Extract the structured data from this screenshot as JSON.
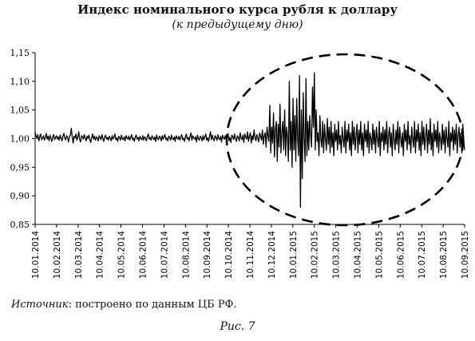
{
  "chart_data": {
    "type": "line",
    "title": "Индекс номинального курса рубля к доллару",
    "subtitle": "(к предыдущему дню)",
    "xlabel": "",
    "ylabel": "",
    "ylim": [
      0.85,
      1.15
    ],
    "yticks": [
      "0,85",
      "0,90",
      "0,95",
      "1,00",
      "1,05",
      "1,10",
      "1,15"
    ],
    "x_tick_labels": [
      "10.01.2014",
      "10.02.2014",
      "10.03.2014",
      "10.04.2014",
      "10.05.2014",
      "10.06.2014",
      "10.07.2014",
      "10.08.2014",
      "10.09.2014",
      "10.10.2014",
      "10.11.2014",
      "10.12.2014",
      "10.01.2015",
      "10.02.2015",
      "10.03.2015",
      "10.04.2015",
      "10.05.2015",
      "10.06.2015",
      "10.07.2015",
      "10.08.2015",
      "10.09.2015"
    ],
    "grid": false,
    "legend": "none",
    "annotation": "dashed ellipse highlighting high volatility period (Nov 2014 – Sep 2015)",
    "series": [
      {
        "values": [
          1.012,
          1.004,
          1.0,
          1.007,
          0.996,
          1.003,
          1.008,
          0.998,
          1.001,
          1.005,
          0.997,
          1.002,
          1.009,
          0.999,
          1.004,
          0.996,
          1.006,
          1.001,
          0.995,
          1.003,
          1.007,
          0.998,
          1.002,
          1.005,
          0.999,
          1.003,
          0.997,
          1.006,
          1.001,
          0.996,
          1.004,
          1.009,
          1.0,
          0.998,
          1.005,
          1.002,
          0.994,
          1.003,
          1.006,
          1.018,
          1.003,
          0.992,
          1.004,
          1.001,
          1.008,
          0.997,
          1.002,
          1.012,
          0.998,
          0.994,
          1.005,
          1.003,
          0.999,
          1.007,
          1.001,
          0.996,
          1.004,
          1.0,
          1.006,
          0.998,
          0.993,
          1.002,
          1.008,
          0.999,
          1.004,
          0.997,
          1.003,
          1.001,
          0.996,
          1.005,
          1.002,
          0.998,
          1.007,
          1.0,
          0.995,
          1.003,
          1.006,
          0.999,
          1.002,
          0.997,
          1.004,
          1.001,
          0.996,
          1.005,
          0.999,
          1.003,
          1.008,
          0.998,
          1.001,
          0.995,
          1.004,
          1.002,
          0.997,
          1.006,
          1.0,
          0.998,
          1.003,
          0.996,
          1.005,
          1.001,
          0.999,
          1.004,
          0.997,
          1.002,
          1.007,
          0.998,
          1.001,
          0.995,
          1.003,
          1.006,
          0.999,
          1.002,
          0.996,
          1.004,
          1.0,
          0.998,
          1.005,
          0.997,
          1.003,
          1.001,
          0.996,
          1.004,
          1.008,
          0.999,
          1.002,
          0.997,
          1.005,
          1.001,
          0.998,
          1.003,
          0.995,
          1.006,
          1.0,
          0.998,
          1.004,
          1.002,
          0.996,
          1.005,
          0.999,
          1.003,
          1.007,
          0.998,
          1.001,
          0.996,
          1.004,
          1.002,
          0.997,
          1.006,
          1.0,
          0.998,
          1.003,
          0.995,
          1.005,
          1.001,
          0.999,
          1.004,
          0.997,
          1.002,
          1.007,
          0.998,
          1.001,
          0.995,
          1.003,
          1.008,
          0.999,
          1.002,
          0.996,
          1.004,
          1.01,
          0.997,
          1.005,
          1.001,
          0.999,
          1.003,
          0.994,
          1.006,
          1.0,
          0.997,
          1.004,
          1.002,
          0.996,
          1.005,
          0.998,
          1.003,
          1.008,
          0.997,
          1.001,
          0.995,
          1.004,
          1.012,
          0.998,
          1.006,
          1.0,
          0.996,
          1.005,
          1.002,
          0.997,
          1.007,
          1.0,
          0.998,
          1.004,
          0.994,
          1.006,
          1.001,
          0.999,
          1.005,
          0.997,
          1.003,
          1.009,
          0.996,
          1.002,
          0.993,
          1.006,
          1.003,
          0.998,
          1.008,
          1.0,
          0.995,
          1.005,
          1.002,
          0.996,
          1.01,
          1.001,
          0.998,
          1.006,
          0.993,
          1.008,
          1.003,
          0.999,
          1.012,
          0.995,
          1.004,
          1.01,
          0.992,
          1.005,
          0.998,
          1.015,
          1.002,
          0.996,
          1.007,
          1.001,
          0.994,
          1.01,
          1.004,
          0.997,
          1.015,
          0.99,
          1.005,
          1.01,
          0.985,
          1.02,
          1.005,
          0.995,
          1.058,
          0.975,
          1.02,
          0.992,
          1.045,
          0.968,
          1.015,
          1.03,
          0.96,
          1.025,
          0.985,
          1.06,
          0.975,
          1.01,
          1.03,
          0.98,
          1.05,
          0.97,
          1.02,
          1.005,
          0.96,
          1.1,
          0.98,
          1.03,
          0.95,
          1.07,
          0.98,
          1.04,
          0.96,
          1.07,
          1.0,
          0.97,
          1.11,
          0.88,
          1.05,
          0.93,
          1.08,
          1.0,
          0.96,
          1.105,
          0.97,
          1.03,
          0.98,
          1.04,
          1.005,
          0.985,
          1.09,
          1.02,
          1.115,
          0.98,
          1.05,
          0.995,
          1.01,
          0.97,
          1.04,
          1.0,
          0.985,
          1.03,
          0.975,
          1.025,
          1.0,
          0.98,
          1.035,
          0.99,
          1.02,
          0.975,
          1.03,
          0.985,
          1.01,
          0.97,
          1.025,
          0.995,
          1.015,
          0.98,
          1.03,
          0.99,
          1.005,
          0.975,
          1.02,
          1.0,
          0.985,
          1.03,
          0.975,
          1.015,
          0.995,
          1.025,
          0.98,
          1.01,
          0.97,
          1.03,
          0.99,
          1.02,
          0.98,
          1.005,
          1.025,
          0.975,
          1.015,
          0.99,
          1.03,
          0.98,
          1.01,
          0.97,
          1.025,
          0.995,
          1.015,
          0.985,
          1.03,
          0.975,
          1.01,
          1.0,
          0.98,
          1.025,
          0.99,
          1.015,
          0.975,
          1.02,
          1.0,
          0.985,
          1.03,
          0.97,
          1.01,
          0.995,
          1.02,
          0.98,
          1.015,
          0.99,
          1.03,
          0.975,
          1.005,
          1.02,
          0.985,
          1.01,
          0.97,
          1.025,
          1.0,
          0.98,
          1.015,
          0.99,
          1.03,
          0.975,
          1.02,
          1.0,
          0.985,
          1.01,
          0.97,
          1.025,
          0.995,
          1.015,
          0.98,
          1.03,
          0.99,
          1.005,
          0.975,
          1.02,
          1.0,
          0.985,
          1.03,
          0.975,
          1.015,
          0.995,
          1.025,
          0.98,
          1.01,
          0.97,
          1.03,
          0.99,
          1.02,
          0.98,
          1.005,
          1.025,
          0.975,
          1.015,
          0.99,
          1.035,
          0.98,
          1.01,
          0.97,
          1.025,
          0.995,
          1.015,
          0.985,
          1.03,
          0.975,
          1.01,
          1.0,
          0.98,
          1.025,
          0.99,
          1.015,
          0.975,
          1.02,
          1.0,
          0.985,
          1.03,
          0.97,
          1.01,
          0.995,
          1.02,
          0.98,
          1.015,
          0.99,
          1.025,
          0.975,
          1.005,
          1.02,
          0.985,
          1.01,
          0.975,
          1.025,
          1.0,
          0.98
        ]
      }
    ]
  },
  "source": {
    "label": "Источник",
    "text": ": построено по данным ЦБ РФ."
  },
  "caption": "Рис. 7"
}
